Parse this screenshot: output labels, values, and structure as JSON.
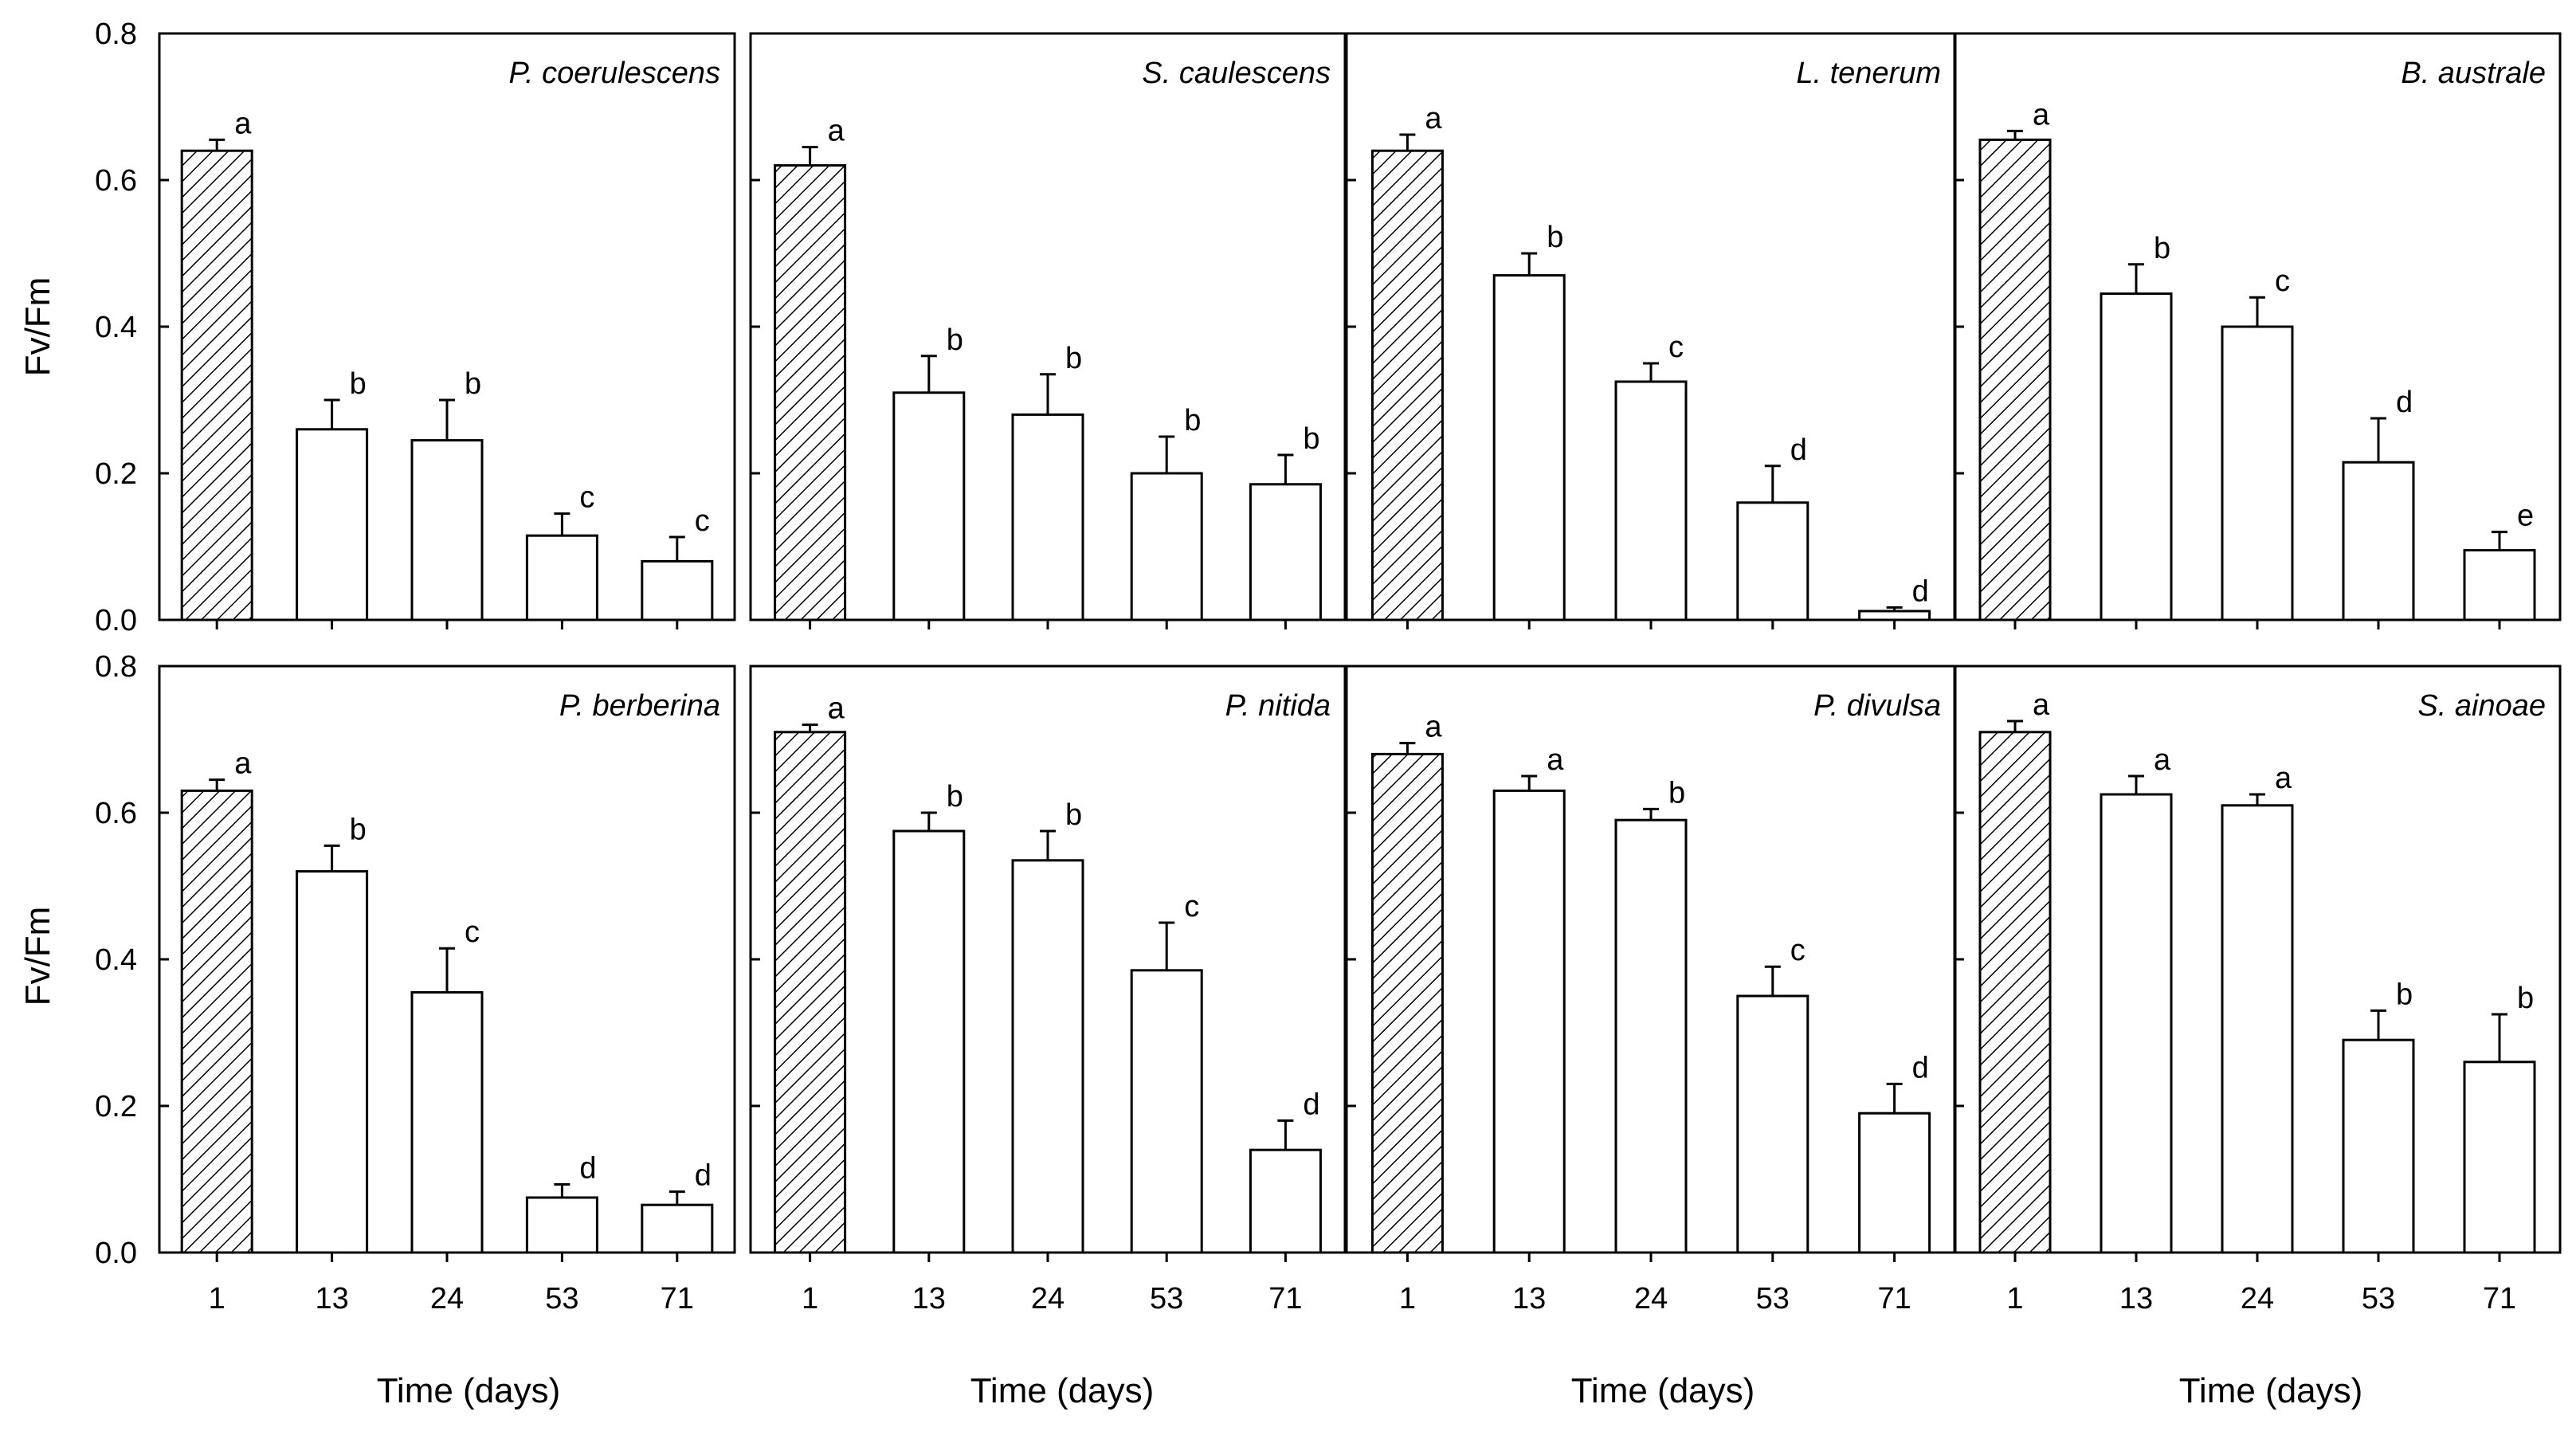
{
  "figure": {
    "ylabel": "Fv/Fm",
    "xlabel": "Time (days)"
  },
  "chart_data": [
    {
      "type": "bar",
      "panel": "P. coerulescens",
      "categories": [
        "1",
        "13",
        "24",
        "53",
        "71"
      ],
      "values": [
        0.64,
        0.26,
        0.245,
        0.115,
        0.08
      ],
      "errors": [
        0.015,
        0.04,
        0.055,
        0.03,
        0.033
      ],
      "letters": [
        "a",
        "b",
        "b",
        "c",
        "c"
      ],
      "ylim": [
        0,
        0.8
      ],
      "yticks": [
        "0.0",
        "0.2",
        "0.4",
        "0.6",
        "0.8"
      ],
      "xlabel": "Time (days)",
      "ylabel": "Fv/Fm",
      "hatched_first_bar": true
    },
    {
      "type": "bar",
      "panel": "S. caulescens",
      "categories": [
        "1",
        "13",
        "24",
        "53",
        "71"
      ],
      "values": [
        0.62,
        0.31,
        0.28,
        0.2,
        0.185
      ],
      "errors": [
        0.025,
        0.05,
        0.055,
        0.05,
        0.04
      ],
      "letters": [
        "a",
        "b",
        "b",
        "b",
        "b"
      ],
      "ylim": [
        0,
        0.8
      ],
      "xlabel": "Time (days)",
      "hatched_first_bar": true
    },
    {
      "type": "bar",
      "panel": "L. tenerum",
      "categories": [
        "1",
        "13",
        "24",
        "53",
        "71"
      ],
      "values": [
        0.64,
        0.47,
        0.325,
        0.16,
        0.012
      ],
      "errors": [
        0.022,
        0.03,
        0.025,
        0.05,
        0.005
      ],
      "letters": [
        "a",
        "b",
        "c",
        "d",
        "d"
      ],
      "ylim": [
        0,
        0.8
      ],
      "xlabel": "Time (days)",
      "hatched_first_bar": true
    },
    {
      "type": "bar",
      "panel": "B. australe",
      "categories": [
        "1",
        "13",
        "24",
        "53",
        "71"
      ],
      "values": [
        0.655,
        0.445,
        0.4,
        0.215,
        0.095
      ],
      "errors": [
        0.012,
        0.04,
        0.04,
        0.06,
        0.025
      ],
      "letters": [
        "a",
        "b",
        "c",
        "d",
        "e"
      ],
      "ylim": [
        0,
        0.8
      ],
      "xlabel": "Time (days)",
      "hatched_first_bar": true
    },
    {
      "type": "bar",
      "panel": "P. berberina",
      "categories": [
        "1",
        "13",
        "24",
        "53",
        "71"
      ],
      "values": [
        0.63,
        0.52,
        0.355,
        0.075,
        0.065
      ],
      "errors": [
        0.015,
        0.035,
        0.06,
        0.018,
        0.018
      ],
      "letters": [
        "a",
        "b",
        "c",
        "d",
        "d"
      ],
      "ylim": [
        0,
        0.8
      ],
      "yticks": [
        "0.0",
        "0.2",
        "0.4",
        "0.6",
        "0.8"
      ],
      "xlabel": "Time (days)",
      "ylabel": "Fv/Fm",
      "hatched_first_bar": true
    },
    {
      "type": "bar",
      "panel": "P. nitida",
      "categories": [
        "1",
        "13",
        "24",
        "53",
        "71"
      ],
      "values": [
        0.71,
        0.575,
        0.535,
        0.385,
        0.14
      ],
      "errors": [
        0.01,
        0.025,
        0.04,
        0.065,
        0.04
      ],
      "letters": [
        "a",
        "b",
        "b",
        "c",
        "d"
      ],
      "ylim": [
        0,
        0.8
      ],
      "xlabel": "Time (days)",
      "hatched_first_bar": true
    },
    {
      "type": "bar",
      "panel": "P. divulsa",
      "categories": [
        "1",
        "13",
        "24",
        "53",
        "71"
      ],
      "values": [
        0.68,
        0.63,
        0.59,
        0.35,
        0.19
      ],
      "errors": [
        0.015,
        0.02,
        0.015,
        0.04,
        0.04
      ],
      "letters": [
        "a",
        "a",
        "b",
        "c",
        "d"
      ],
      "ylim": [
        0,
        0.8
      ],
      "xlabel": "Time (days)",
      "hatched_first_bar": true
    },
    {
      "type": "bar",
      "panel": "S. ainoae",
      "categories": [
        "1",
        "13",
        "24",
        "53",
        "71"
      ],
      "values": [
        0.71,
        0.625,
        0.61,
        0.29,
        0.26
      ],
      "errors": [
        0.015,
        0.025,
        0.015,
        0.04,
        0.065
      ],
      "letters": [
        "a",
        "a",
        "a",
        "b",
        "b"
      ],
      "ylim": [
        0,
        0.8
      ],
      "xlabel": "Time (days)",
      "hatched_first_bar": true
    }
  ]
}
